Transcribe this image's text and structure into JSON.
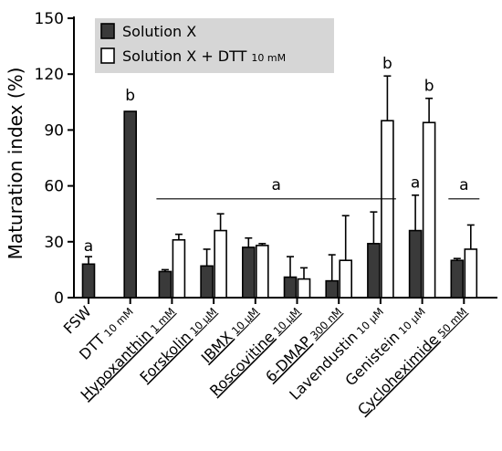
{
  "chart_data": {
    "type": "bar",
    "ylabel": "Maturation index (%)",
    "ylim": [
      0,
      150
    ],
    "yticks": [
      0,
      30,
      60,
      90,
      120,
      150
    ],
    "grid": false,
    "legend_position": "top-left",
    "series": [
      {
        "name": "Solution X",
        "color": "#3a3a3a"
      },
      {
        "name": "Solution X + DTT",
        "name_suffix": "10 mM",
        "color": "#ffffff"
      }
    ],
    "categories": [
      {
        "name": "FSW",
        "conc": "",
        "underline": false,
        "values": [
          18,
          null
        ],
        "errors": [
          4,
          null
        ]
      },
      {
        "name": "DTT",
        "conc": "10 mM",
        "underline": false,
        "values": [
          null,
          100
        ],
        "errors": [
          null,
          0
        ],
        "series_override": 0
      },
      {
        "name": "Hypoxanthin",
        "conc": "1 mM",
        "underline": true,
        "values": [
          14,
          31
        ],
        "errors": [
          1,
          3
        ]
      },
      {
        "name": "Forskolin",
        "conc": "10 μM",
        "underline": true,
        "values": [
          17,
          36
        ],
        "errors": [
          9,
          9
        ]
      },
      {
        "name": "IBMX",
        "conc": "10 μM",
        "underline": true,
        "values": [
          27,
          28
        ],
        "errors": [
          5,
          1
        ]
      },
      {
        "name": "Roscovitine",
        "conc": "10 μM",
        "underline": true,
        "values": [
          11,
          10
        ],
        "errors": [
          11,
          6
        ]
      },
      {
        "name": "6-DMAP",
        "conc": "300 nM",
        "underline": true,
        "values": [
          9,
          20
        ],
        "errors": [
          14,
          24
        ]
      },
      {
        "name": "Lavendustin",
        "conc": "10 μM",
        "underline": false,
        "values": [
          29,
          95
        ],
        "errors": [
          17,
          24
        ]
      },
      {
        "name": "Genistein",
        "conc": "10 μM",
        "underline": false,
        "values": [
          36,
          94
        ],
        "errors": [
          19,
          13
        ]
      },
      {
        "name": "Cycloheximide",
        "conc": "50 mM",
        "underline": true,
        "values": [
          20,
          26
        ],
        "errors": [
          1,
          13
        ]
      }
    ],
    "annotations": [
      {
        "text": "a",
        "category_index": 0,
        "value": 25,
        "type": "letter"
      },
      {
        "text": "b",
        "category_index": 1,
        "value": 106,
        "type": "letter"
      },
      {
        "text": "a",
        "from_index": 2,
        "to_index": 7,
        "value": 55,
        "type": "bracket"
      },
      {
        "text": "b",
        "category_index": 7,
        "series_index": 1,
        "value": 123,
        "type": "letter"
      },
      {
        "text": "a",
        "category_index": 8,
        "series_index": 0,
        "value": 59,
        "type": "letter"
      },
      {
        "text": "b",
        "category_index": 8,
        "series_index": 1,
        "value": 111,
        "type": "letter"
      },
      {
        "text": "a",
        "from_index": 9,
        "to_index": 9,
        "value": 55,
        "type": "bracket"
      }
    ]
  }
}
